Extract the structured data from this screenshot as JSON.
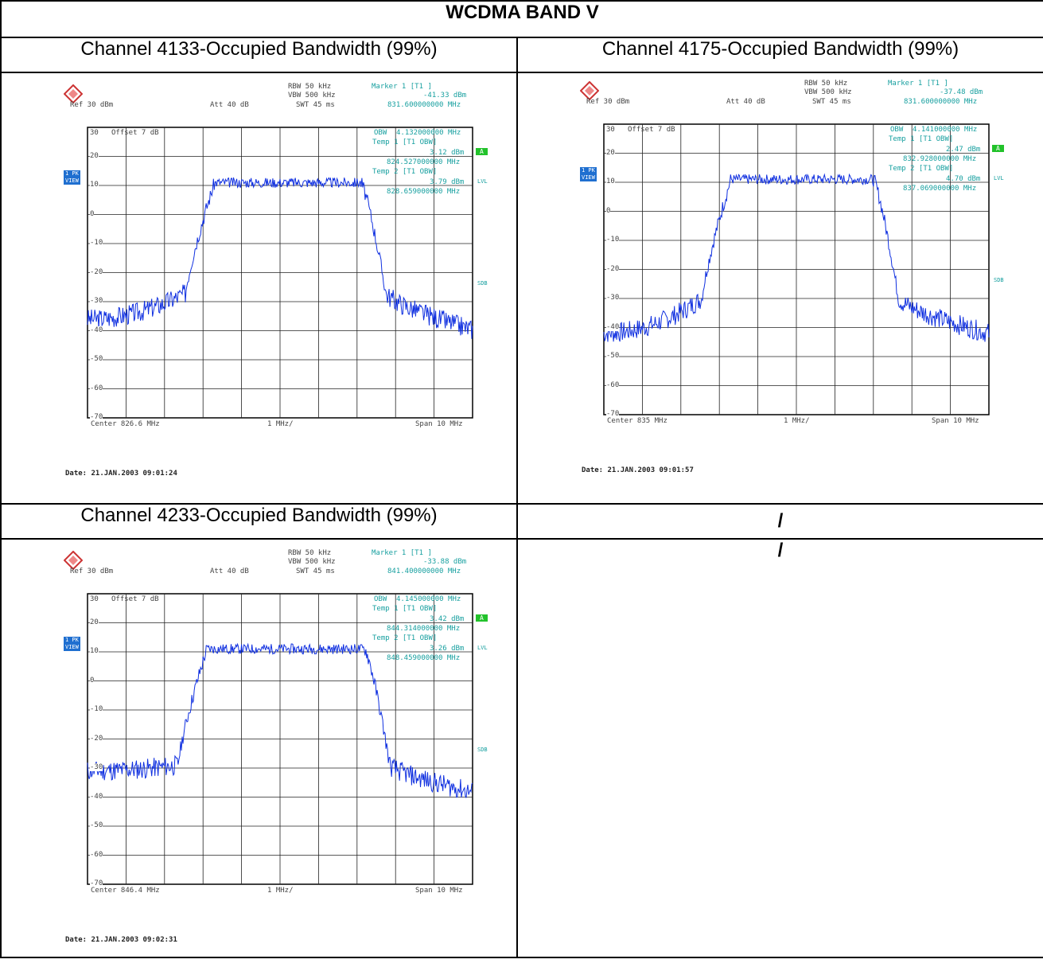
{
  "title": "WCDMA BAND V",
  "empty_slash": "/",
  "plots": [
    {
      "heading": "Channel 4133-Occupied Bandwidth (99%)",
      "rbw": "RBW 50 kHz",
      "vbw": "VBW 500 kHz",
      "swt": "SWT 45 ms",
      "att": "Att  40 dB",
      "ref": "Ref  30 dBm",
      "marker": "Marker 1 [T1 ]",
      "marker_val": "-41.33 dBm",
      "marker_freq": "831.600000000 MHz",
      "offset": "Offset  7 dB",
      "obw_label": "OBW",
      "obw": "4.132000000 MHz",
      "temp1": "Temp 1 [T1 OBW]",
      "temp1_val": "3.12 dBm",
      "temp1_freq": "824.527000000 MHz",
      "temp2": "Temp 2 [T1 OBW]",
      "temp2_val": "3.79 dBm",
      "temp2_freq": "828.659000000 MHz",
      "center": "Center  826.6 MHz",
      "div": "1 MHz/",
      "span": "Span  10 MHz",
      "date": "Date: 21.JAN.2003  09:01:24",
      "pk": "1 PK",
      "view": "VIEW",
      "lvl": "LVL",
      "sdb": "SDB",
      "a": "A",
      "yticks": [
        "30",
        "20",
        "10",
        "0",
        "-10",
        "-20",
        "-30",
        "-40",
        "-50",
        "-60",
        "-70"
      ],
      "shape": {
        "base": -36,
        "shoulder": -27,
        "plateau": 11,
        "lo": 0.29,
        "hi": 0.74,
        "slope": -0.3,
        "seed": 3
      }
    },
    {
      "heading": "Channel 4175-Occupied Bandwidth (99%)",
      "rbw": "RBW 50 kHz",
      "vbw": "VBW 500 kHz",
      "swt": "SWT 45 ms",
      "att": "Att  40 dB",
      "ref": "Ref  30 dBm",
      "marker": "Marker 1 [T1 ]",
      "marker_val": "-37.48 dBm",
      "marker_freq": "831.600000000 MHz",
      "offset": "Offset  7 dB",
      "obw_label": "OBW",
      "obw": "4.141000000 MHz",
      "temp1": "Temp 1 [T1 OBW]",
      "temp1_val": "2.47 dBm",
      "temp1_freq": "832.928000000 MHz",
      "temp2": "Temp 2 [T1 OBW]",
      "temp2_val": "4.70 dBm",
      "temp2_freq": "837.069000000 MHz",
      "center": "Center  835 MHz",
      "div": "1 MHz/",
      "span": "Span  10 MHz",
      "date": "Date: 21.JAN.2003  09:01:57",
      "pk": "1 PK",
      "view": "VIEW",
      "lvl": "LVL",
      "sdb": "SDB",
      "a": "A",
      "yticks": [
        "30",
        "20",
        "10",
        "0",
        "-10",
        "-20",
        "-30",
        "-40",
        "-50",
        "-60",
        "-70"
      ],
      "shape": {
        "base": -42,
        "shoulder": -30,
        "plateau": 11,
        "lo": 0.29,
        "hi": 0.73,
        "slope": 0.0,
        "seed": 7
      }
    },
    {
      "heading": "Channel 4233-Occupied Bandwidth (99%)",
      "rbw": "RBW 50 kHz",
      "vbw": "VBW 500 kHz",
      "swt": "SWT 45 ms",
      "att": "Att  40 dB",
      "ref": "Ref  30 dBm",
      "marker": "Marker 1 [T1 ]",
      "marker_val": "-33.88 dBm",
      "marker_freq": "841.400000000 MHz",
      "offset": "Offset  7 dB",
      "obw_label": "OBW",
      "obw": "4.145000000 MHz",
      "temp1": "Temp 1 [T1 OBW]",
      "temp1_val": "3.42 dBm",
      "temp1_freq": "844.314000000 MHz",
      "temp2": "Temp 2 [T1 OBW]",
      "temp2_val": "3.26 dBm",
      "temp2_freq": "848.459000000 MHz",
      "center": "Center  846.4 MHz",
      "div": "1 MHz/",
      "span": "Span  10 MHz",
      "date": "Date: 21.JAN.2003  09:02:31",
      "pk": "1 PK",
      "view": "VIEW",
      "lvl": "LVL",
      "sdb": "SDB",
      "a": "A",
      "yticks": [
        "30",
        "20",
        "10",
        "0",
        "-10",
        "-20",
        "-30",
        "-40",
        "-50",
        "-60",
        "-70"
      ],
      "shape": {
        "base": -31,
        "shoulder": -29,
        "plateau": 11,
        "lo": 0.27,
        "hi": 0.75,
        "slope": -0.6,
        "seed": 11
      }
    }
  ]
}
